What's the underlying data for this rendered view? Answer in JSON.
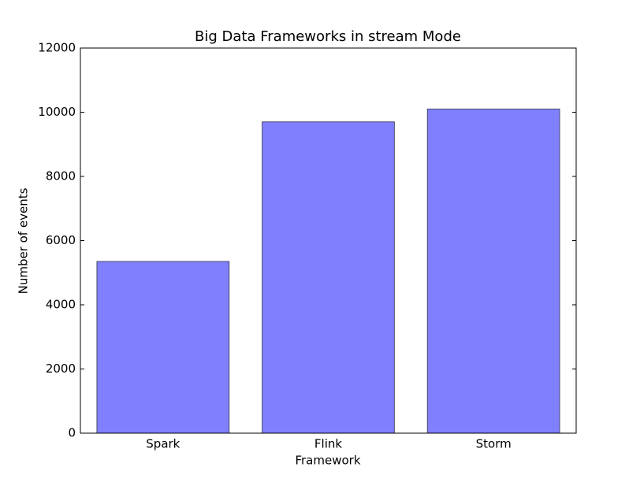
{
  "chart_data": {
    "type": "bar",
    "title": "Big Data Frameworks in stream Mode",
    "x_label": "Framework",
    "y_label": "Number of events",
    "categories": [
      "Spark",
      "Flink",
      "Storm"
    ],
    "values": [
      5350,
      9700,
      10100
    ],
    "color": "#8080ff",
    "ylim": [
      0,
      12000
    ],
    "yticks": [
      0,
      2000,
      4000,
      6000,
      8000,
      10000,
      12000
    ],
    "grid": false
  }
}
